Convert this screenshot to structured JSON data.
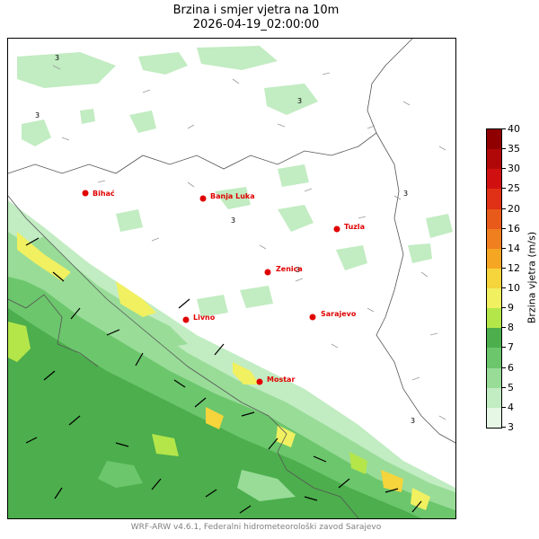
{
  "title": {
    "line1": "Brzina i smjer vjetra na 10m",
    "line2": "2026-04-19_02:00:00"
  },
  "cities": [
    {
      "name": "Bihać",
      "label": "Bihać"
    },
    {
      "name": "Banja Luka",
      "label": "Banja Luka"
    },
    {
      "name": "Tuzla",
      "label": "Tuzla"
    },
    {
      "name": "Zenica",
      "label": "Zenica"
    },
    {
      "name": "Sarajevo",
      "label": "Sarajevo"
    },
    {
      "name": "Livno",
      "label": "Livno"
    },
    {
      "name": "Mostar",
      "label": "Mostar"
    }
  ],
  "city_color": "#e00000",
  "colorbar": {
    "title": "Brzina vjetra (m/s)",
    "levels": [
      "3",
      "4",
      "5",
      "6",
      "7",
      "8",
      "9",
      "10",
      "12",
      "14",
      "16",
      "20",
      "25",
      "30",
      "35",
      "40"
    ],
    "colors": [
      "#e6f7e6",
      "#c2ecc2",
      "#98dc98",
      "#6cc66c",
      "#4cae4c",
      "#b4e64a",
      "#f0f060",
      "#f5d43c",
      "#f5a623",
      "#f07f20",
      "#e85a1a",
      "#e03015",
      "#d01010",
      "#b00808",
      "#900000"
    ]
  },
  "contour_label": "3",
  "footer": "WRF-ARW v4.6.1, Federalni hidrometeorološki zavod Sarajevo"
}
